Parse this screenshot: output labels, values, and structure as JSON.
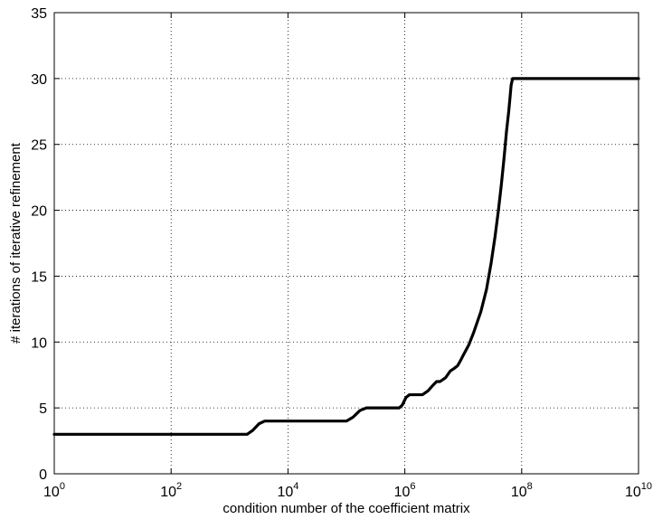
{
  "chart_data": {
    "type": "line",
    "title": "",
    "xlabel": "condition number of the coefficient matrix",
    "ylabel": "# iterations of iterative refinement",
    "xscale": "log",
    "xlim": [
      1,
      10000000000
    ],
    "ylim": [
      0,
      35
    ],
    "grid": true,
    "x_ticks": [
      {
        "base": "10",
        "exp": "0",
        "value": 1
      },
      {
        "base": "10",
        "exp": "2",
        "value": 100
      },
      {
        "base": "10",
        "exp": "4",
        "value": 10000
      },
      {
        "base": "10",
        "exp": "6",
        "value": 1000000
      },
      {
        "base": "10",
        "exp": "8",
        "value": 100000000
      },
      {
        "base": "10",
        "exp": "10",
        "value": 10000000000
      }
    ],
    "y_ticks": [
      "0",
      "5",
      "10",
      "15",
      "20",
      "25",
      "30",
      "35"
    ],
    "line_color": "#000000",
    "series": [
      {
        "x": [
          1,
          100,
          1000,
          2000,
          2500,
          3200,
          4000,
          5000,
          10000,
          50000,
          100000,
          130000,
          170000,
          220000,
          280000,
          500000,
          800000,
          900000,
          1050000,
          1200000,
          1500000,
          2000000,
          2500000,
          3000000,
          3500000,
          4000000,
          5000000,
          6000000,
          7000000,
          8000000,
          9000000,
          10000000,
          12500000,
          15000000,
          20000000,
          25000000,
          30000000,
          35000000,
          40000000,
          45000000,
          50000000,
          55000000,
          60000000,
          63000000,
          66000000,
          70000000,
          75000000,
          80000000,
          90000000,
          100000000,
          110000000,
          120000000,
          130000000,
          150000000,
          300000000,
          1000000000,
          10000000000
        ],
        "y": [
          3,
          3,
          3,
          3,
          3.3,
          3.8,
          4,
          4,
          4,
          4,
          4,
          4.3,
          4.8,
          5,
          5,
          5,
          5,
          5.2,
          5.8,
          6,
          6,
          6,
          6.3,
          6.7,
          7,
          7,
          7.3,
          7.8,
          8,
          8.2,
          8.6,
          9,
          9.8,
          10.7,
          12.3,
          14,
          16,
          18,
          20,
          22,
          24,
          26,
          27.5,
          28.5,
          29.5,
          30,
          30,
          30,
          30,
          30,
          30,
          30,
          30,
          30,
          30,
          30,
          30
        ]
      }
    ]
  }
}
